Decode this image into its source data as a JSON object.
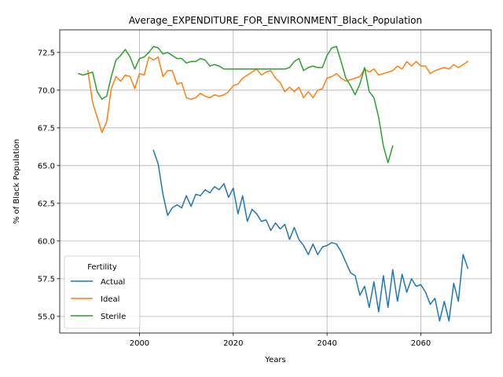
{
  "chart_data": {
    "type": "line",
    "title": "Average_EXPENDITURE_FOR_ENVIRONMENT_Black_Population",
    "xlabel": "Years",
    "ylabel": "% of Black Population",
    "xlim": [
      1983,
      2075
    ],
    "ylim": [
      53.9,
      74.0
    ],
    "xticks": [
      2000,
      2020,
      2040,
      2060
    ],
    "yticks": [
      55.0,
      57.5,
      60.0,
      62.5,
      65.0,
      67.5,
      70.0,
      72.5
    ],
    "xtick_labels": [
      "2000",
      "2020",
      "2040",
      "2060"
    ],
    "ytick_labels": [
      "55.0",
      "57.5",
      "60.0",
      "62.5",
      "65.0",
      "67.5",
      "70.0",
      "72.5"
    ],
    "grid": true,
    "legend": {
      "title": "Fertility",
      "placement": "lower-left"
    },
    "series": [
      {
        "name": "Actual",
        "color": "#1f77b4",
        "x": [
          2003,
          2004,
          2005,
          2006,
          2007,
          2008,
          2009,
          2010,
          2011,
          2012,
          2013,
          2014,
          2015,
          2016,
          2017,
          2018,
          2019,
          2020,
          2021,
          2022,
          2023,
          2024,
          2025,
          2026,
          2027,
          2028,
          2029,
          2030,
          2031,
          2032,
          2033,
          2034,
          2035,
          2036,
          2037,
          2038,
          2039,
          2040,
          2041,
          2042,
          2043,
          2044,
          2045,
          2046,
          2047,
          2048,
          2049,
          2050,
          2051,
          2052,
          2053,
          2054,
          2055,
          2056,
          2057,
          2058,
          2059,
          2060,
          2061,
          2062,
          2063,
          2064,
          2065,
          2066,
          2067,
          2068,
          2069,
          2070
        ],
        "values": [
          66.0,
          65.1,
          63.1,
          61.7,
          62.2,
          62.4,
          62.2,
          63.0,
          62.3,
          63.1,
          63.0,
          63.4,
          63.2,
          63.6,
          63.4,
          63.8,
          62.9,
          63.5,
          61.8,
          63.0,
          61.3,
          62.1,
          61.8,
          61.3,
          61.4,
          60.7,
          61.2,
          60.8,
          61.1,
          60.1,
          60.9,
          60.1,
          59.7,
          59.1,
          59.8,
          59.1,
          59.6,
          59.7,
          59.9,
          59.8,
          59.3,
          58.6,
          57.9,
          57.7,
          56.4,
          57.0,
          55.6,
          57.3,
          55.3,
          57.7,
          55.6,
          58.1,
          56.0,
          57.8,
          56.6,
          57.5,
          57.0,
          57.1,
          56.6,
          55.8,
          56.2,
          54.7,
          56.0,
          54.7,
          57.2,
          56.0,
          59.1,
          58.2
        ]
      },
      {
        "name": "Ideal",
        "color": "#ff7f0e",
        "x": [
          1989,
          1990,
          1991,
          1992,
          1993,
          1994,
          1995,
          1996,
          1997,
          1998,
          1999,
          2000,
          2001,
          2002,
          2003,
          2004,
          2005,
          2006,
          2007,
          2008,
          2009,
          2010,
          2011,
          2012,
          2013,
          2014,
          2015,
          2016,
          2017,
          2018,
          2019,
          2020,
          2021,
          2022,
          2023,
          2024,
          2025,
          2026,
          2027,
          2028,
          2029,
          2030,
          2031,
          2032,
          2033,
          2034,
          2035,
          2036,
          2037,
          2038,
          2039,
          2040,
          2041,
          2042,
          2043,
          2044,
          2045,
          2046,
          2047,
          2048,
          2049,
          2050,
          2051,
          2052,
          2053,
          2054,
          2055,
          2056,
          2057,
          2058,
          2059,
          2060,
          2061,
          2062,
          2063,
          2064,
          2065,
          2066,
          2067,
          2068,
          2069,
          2070
        ],
        "values": [
          71.3,
          69.2,
          68.2,
          67.2,
          67.9,
          70.1,
          70.9,
          70.6,
          71.0,
          70.9,
          70.1,
          71.1,
          71.0,
          72.2,
          72.0,
          72.2,
          70.9,
          71.3,
          71.3,
          70.4,
          70.5,
          69.5,
          69.4,
          69.5,
          69.8,
          69.6,
          69.5,
          69.7,
          69.6,
          69.7,
          69.9,
          70.3,
          70.4,
          70.8,
          71.0,
          71.2,
          71.4,
          71.0,
          71.2,
          71.3,
          70.8,
          70.5,
          69.9,
          70.2,
          69.9,
          70.2,
          69.5,
          69.9,
          69.5,
          70.0,
          70.1,
          70.8,
          70.9,
          71.1,
          70.8,
          70.6,
          70.7,
          70.8,
          70.9,
          71.4,
          71.2,
          71.4,
          71.0,
          71.1,
          71.2,
          71.3,
          71.6,
          71.4,
          71.9,
          71.6,
          71.9,
          71.6,
          71.6,
          71.1,
          71.3,
          71.4,
          71.5,
          71.4,
          71.7,
          71.5,
          71.7,
          71.9
        ]
      },
      {
        "name": "Sterile",
        "color": "#2ca02c",
        "x": [
          1987,
          1988,
          1989,
          1990,
          1991,
          1992,
          1993,
          1994,
          1995,
          1996,
          1997,
          1998,
          1999,
          2000,
          2001,
          2002,
          2003,
          2004,
          2005,
          2006,
          2007,
          2008,
          2009,
          2010,
          2011,
          2012,
          2013,
          2014,
          2015,
          2016,
          2017,
          2018,
          2019,
          2020,
          2021,
          2022,
          2023,
          2024,
          2025,
          2026,
          2027,
          2028,
          2029,
          2030,
          2031,
          2032,
          2033,
          2034,
          2035,
          2036,
          2037,
          2038,
          2039,
          2040,
          2041,
          2042,
          2043,
          2044,
          2045,
          2046,
          2047,
          2048,
          2049,
          2050,
          2051,
          2052,
          2053,
          2054
        ],
        "values": [
          71.1,
          71.0,
          71.1,
          71.2,
          69.9,
          69.4,
          69.6,
          70.9,
          72.0,
          72.3,
          72.7,
          72.2,
          71.4,
          72.1,
          72.2,
          72.5,
          72.9,
          72.8,
          72.4,
          72.5,
          72.3,
          72.1,
          72.1,
          71.8,
          71.9,
          71.9,
          72.1,
          72.0,
          71.6,
          71.7,
          71.6,
          71.4,
          71.4,
          71.4,
          71.4,
          71.4,
          71.4,
          71.4,
          71.4,
          71.4,
          71.4,
          71.4,
          71.4,
          71.4,
          71.4,
          71.5,
          71.9,
          72.1,
          71.3,
          71.5,
          71.6,
          71.5,
          71.5,
          72.3,
          72.8,
          72.9,
          71.9,
          70.8,
          70.3,
          69.7,
          70.4,
          71.5,
          69.9,
          69.5,
          68.2,
          66.3,
          65.2,
          66.3
        ]
      }
    ]
  }
}
